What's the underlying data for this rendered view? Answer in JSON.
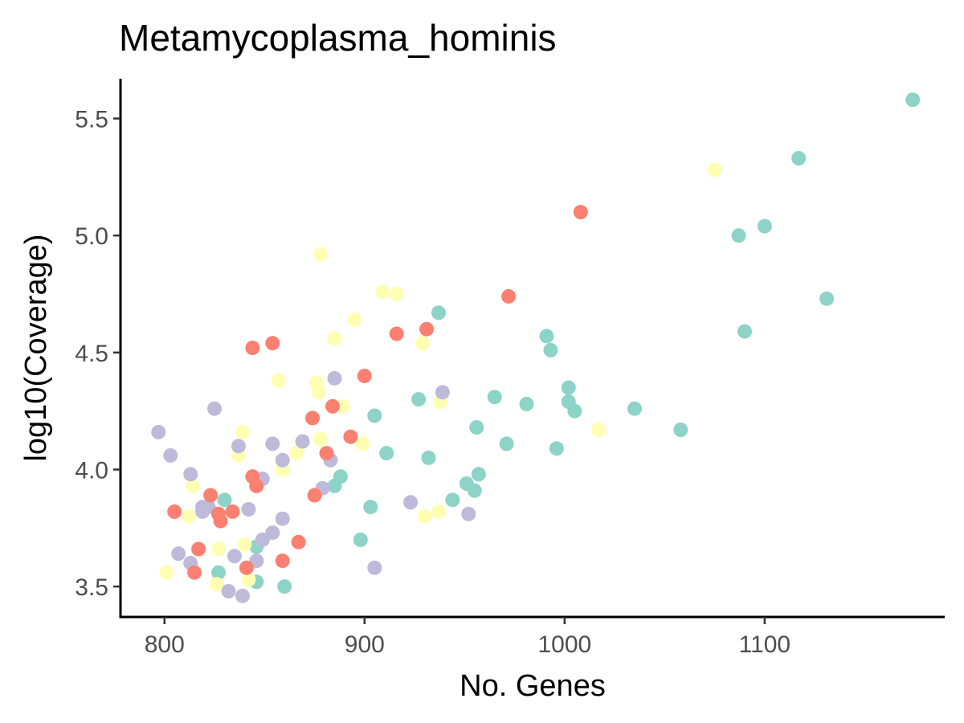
{
  "chart_data": {
    "type": "scatter",
    "title": "Metamycoplasma_hominis",
    "xlabel": "No. Genes",
    "ylabel": "log10(Coverage)",
    "xlim": [
      778,
      1190
    ],
    "ylim": [
      3.37,
      5.67
    ],
    "x_ticks": [
      800,
      900,
      1000,
      1100
    ],
    "y_ticks": [
      3.5,
      4.0,
      4.5,
      5.0,
      5.5
    ],
    "x_tick_labels": [
      "800",
      "900",
      "1000",
      "1100"
    ],
    "y_tick_labels": [
      "3.5",
      "4.0",
      "4.5",
      "5.0",
      "5.5"
    ],
    "grid": false,
    "legend": "none",
    "series": [
      {
        "color": "#8DD3C7",
        "points": [
          [
            1174,
            5.58
          ],
          [
            1117,
            5.33
          ],
          [
            1100,
            5.04
          ],
          [
            1087,
            5.0
          ],
          [
            1131,
            4.73
          ],
          [
            1090,
            4.59
          ],
          [
            937,
            4.67
          ],
          [
            991,
            4.57
          ],
          [
            993,
            4.51
          ],
          [
            1035,
            4.26
          ],
          [
            1058,
            4.17
          ],
          [
            1002,
            4.35
          ],
          [
            1002,
            4.29
          ],
          [
            1005,
            4.25
          ],
          [
            981,
            4.28
          ],
          [
            965,
            4.31
          ],
          [
            971,
            4.11
          ],
          [
            996,
            4.09
          ],
          [
            927,
            4.3
          ],
          [
            905,
            4.23
          ],
          [
            956,
            4.18
          ],
          [
            911,
            4.07
          ],
          [
            932,
            4.05
          ],
          [
            957,
            3.98
          ],
          [
            951,
            3.94
          ],
          [
            955,
            3.91
          ],
          [
            944,
            3.87
          ],
          [
            888,
            3.97
          ],
          [
            885,
            3.93
          ],
          [
            903,
            3.84
          ],
          [
            898,
            3.7
          ],
          [
            830,
            3.87
          ],
          [
            846,
            3.67
          ],
          [
            827,
            3.56
          ],
          [
            846,
            3.52
          ],
          [
            860,
            3.5
          ]
        ]
      },
      {
        "color": "#FFFFB3",
        "points": [
          [
            1075,
            5.28
          ],
          [
            878,
            4.92
          ],
          [
            909,
            4.76
          ],
          [
            916,
            4.75
          ],
          [
            895,
            4.64
          ],
          [
            885,
            4.56
          ],
          [
            929,
            4.54
          ],
          [
            857,
            4.38
          ],
          [
            876,
            4.37
          ],
          [
            877,
            4.33
          ],
          [
            938,
            4.29
          ],
          [
            889,
            4.27
          ],
          [
            839,
            4.16
          ],
          [
            878,
            4.13
          ],
          [
            899,
            4.11
          ],
          [
            1017,
            4.17
          ],
          [
            866,
            4.07
          ],
          [
            837,
            4.06
          ],
          [
            859,
            4.0
          ],
          [
            814,
            3.93
          ],
          [
            937,
            3.82
          ],
          [
            930,
            3.8
          ],
          [
            812,
            3.8
          ],
          [
            840,
            3.68
          ],
          [
            827,
            3.66
          ],
          [
            801,
            3.56
          ],
          [
            842,
            3.53
          ],
          [
            826,
            3.51
          ]
        ]
      },
      {
        "color": "#BEBADA",
        "points": [
          [
            939,
            4.33
          ],
          [
            885,
            4.39
          ],
          [
            825,
            4.26
          ],
          [
            797,
            4.16
          ],
          [
            869,
            4.12
          ],
          [
            854,
            4.11
          ],
          [
            837,
            4.1
          ],
          [
            803,
            4.06
          ],
          [
            859,
            4.04
          ],
          [
            883,
            4.04
          ],
          [
            813,
            3.98
          ],
          [
            849,
            3.96
          ],
          [
            879,
            3.92
          ],
          [
            819,
            3.84
          ],
          [
            822,
            3.84
          ],
          [
            819,
            3.82
          ],
          [
            842,
            3.83
          ],
          [
            923,
            3.86
          ],
          [
            952,
            3.81
          ],
          [
            859,
            3.79
          ],
          [
            854,
            3.73
          ],
          [
            849,
            3.7
          ],
          [
            807,
            3.64
          ],
          [
            835,
            3.63
          ],
          [
            846,
            3.61
          ],
          [
            813,
            3.6
          ],
          [
            905,
            3.58
          ],
          [
            832,
            3.48
          ],
          [
            839,
            3.46
          ]
        ]
      },
      {
        "color": "#FB8072",
        "points": [
          [
            1008,
            5.1
          ],
          [
            972,
            4.74
          ],
          [
            931,
            4.6
          ],
          [
            916,
            4.58
          ],
          [
            854,
            4.54
          ],
          [
            844,
            4.52
          ],
          [
            900,
            4.4
          ],
          [
            884,
            4.27
          ],
          [
            874,
            4.22
          ],
          [
            893,
            4.14
          ],
          [
            881,
            4.07
          ],
          [
            844,
            3.97
          ],
          [
            846,
            3.93
          ],
          [
            875,
            3.89
          ],
          [
            823,
            3.89
          ],
          [
            834,
            3.82
          ],
          [
            805,
            3.82
          ],
          [
            827,
            3.81
          ],
          [
            828,
            3.78
          ],
          [
            867,
            3.69
          ],
          [
            817,
            3.66
          ],
          [
            859,
            3.61
          ],
          [
            841,
            3.58
          ],
          [
            815,
            3.56
          ]
        ]
      }
    ]
  }
}
